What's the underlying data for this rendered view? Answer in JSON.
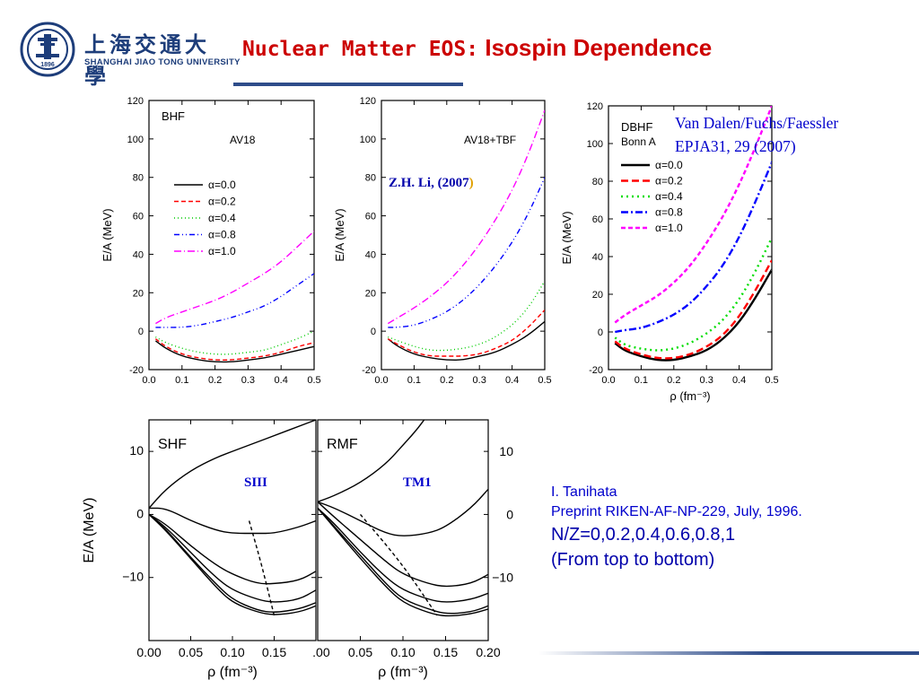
{
  "header": {
    "university_cn": "上海交通大學",
    "university_en": "SHANGHAI  JIAO TONG  UNIVERSITY",
    "seal_year": "1896",
    "title_part1": "Nuclear Matter EOS:",
    "title_part2": "Isospin Dependence"
  },
  "annotations": {
    "bhf_tbf_credit_main": "Z.H. Li, (2007",
    "bhf_tbf_credit_paren": ")",
    "dbhf_credit_line1": "Van Dalen/Fuchs/Faessler",
    "dbhf_credit_line2": "EPJA31, 29 (2007)",
    "shf_param": "SIII",
    "rmf_param": "TM1",
    "tanihata_line1": "I. Tanihata",
    "tanihata_line2": "Preprint RIKEN-AF-NP-229, July, 1996.",
    "tanihata_line3": "N/Z=0,0.2,0.4,0.6,0.8,1",
    "tanihata_line4": "(From top to bottom)"
  },
  "chart_data": [
    {
      "id": "bhf",
      "type": "line",
      "panel_title": "BHF",
      "subtitle": "AV18",
      "xlabel": "ρ (fm⁻³)",
      "ylabel": "E/A (MeV)",
      "xlim": [
        0.0,
        0.5
      ],
      "ylim": [
        -20,
        120
      ],
      "xticks": [
        "0.0",
        "0.1",
        "0.2",
        "0.3",
        "0.4",
        "0.5"
      ],
      "yticks": [
        "-20",
        "0",
        "20",
        "40",
        "60",
        "80",
        "100",
        "120"
      ],
      "legend_position": "middle-left",
      "series": [
        {
          "name": "α=0.0",
          "color": "#000000",
          "dash": "",
          "x": [
            0.02,
            0.05,
            0.1,
            0.15,
            0.2,
            0.25,
            0.3,
            0.35,
            0.4,
            0.45,
            0.5
          ],
          "y": [
            -5,
            -9,
            -13,
            -15,
            -16,
            -16,
            -15,
            -14,
            -12,
            -10,
            -8
          ]
        },
        {
          "name": "α=0.2",
          "color": "#ff0000",
          "dash": "5,3",
          "x": [
            0.02,
            0.05,
            0.1,
            0.15,
            0.2,
            0.25,
            0.3,
            0.35,
            0.4,
            0.45,
            0.5
          ],
          "y": [
            -4,
            -8,
            -12,
            -14,
            -15,
            -15,
            -14,
            -13,
            -11,
            -8,
            -6
          ]
        },
        {
          "name": "α=0.4",
          "color": "#00cc00",
          "dash": "1,3",
          "x": [
            0.02,
            0.05,
            0.1,
            0.15,
            0.2,
            0.25,
            0.3,
            0.35,
            0.4,
            0.45,
            0.5
          ],
          "y": [
            -3,
            -6,
            -9,
            -11,
            -12,
            -12,
            -11,
            -10,
            -7,
            -4,
            0
          ]
        },
        {
          "name": "α=0.8",
          "color": "#0000ff",
          "dash": "6,3,1,3,1,3",
          "x": [
            0.02,
            0.05,
            0.1,
            0.15,
            0.2,
            0.25,
            0.3,
            0.35,
            0.4,
            0.45,
            0.5
          ],
          "y": [
            2,
            2,
            2,
            3,
            5,
            7,
            10,
            13,
            18,
            24,
            30
          ]
        },
        {
          "name": "α=1.0",
          "color": "#ff00ff",
          "dash": "8,3,1,3",
          "x": [
            0.02,
            0.05,
            0.1,
            0.15,
            0.2,
            0.25,
            0.3,
            0.35,
            0.4,
            0.45,
            0.5
          ],
          "y": [
            4,
            7,
            10,
            13,
            16,
            20,
            25,
            30,
            36,
            44,
            52
          ]
        }
      ]
    },
    {
      "id": "bhf_tbf",
      "type": "line",
      "panel_title": "",
      "subtitle": "AV18+TBF",
      "xlabel": "ρ (fm⁻³)",
      "ylabel": "E/A (MeV)",
      "xlim": [
        0.0,
        0.5
      ],
      "ylim": [
        -20,
        120
      ],
      "xticks": [
        "0.0",
        "0.1",
        "0.2",
        "0.3",
        "0.4",
        "0.5"
      ],
      "yticks": [
        "-20",
        "0",
        "20",
        "40",
        "60",
        "80",
        "100",
        "120"
      ],
      "series": [
        {
          "name": "α=0.0",
          "color": "#000000",
          "dash": "",
          "x": [
            0.02,
            0.05,
            0.1,
            0.15,
            0.2,
            0.25,
            0.3,
            0.35,
            0.4,
            0.45,
            0.5
          ],
          "y": [
            -4,
            -8,
            -12,
            -14,
            -15,
            -15,
            -13,
            -11,
            -7,
            -2,
            5
          ]
        },
        {
          "name": "α=0.2",
          "color": "#ff0000",
          "dash": "5,3",
          "x": [
            0.02,
            0.05,
            0.1,
            0.15,
            0.2,
            0.25,
            0.3,
            0.35,
            0.4,
            0.45,
            0.5
          ],
          "y": [
            -4,
            -7,
            -11,
            -13,
            -13,
            -13,
            -12,
            -9,
            -5,
            2,
            11
          ]
        },
        {
          "name": "α=0.4",
          "color": "#00cc00",
          "dash": "1,3",
          "x": [
            0.02,
            0.05,
            0.1,
            0.15,
            0.2,
            0.25,
            0.3,
            0.35,
            0.4,
            0.45,
            0.5
          ],
          "y": [
            -3,
            -5,
            -8,
            -10,
            -10,
            -9,
            -7,
            -3,
            3,
            12,
            26
          ]
        },
        {
          "name": "α=0.8",
          "color": "#0000ff",
          "dash": "6,3,1,3,1,3",
          "x": [
            0.02,
            0.05,
            0.1,
            0.15,
            0.2,
            0.25,
            0.3,
            0.35,
            0.4,
            0.45,
            0.5
          ],
          "y": [
            2,
            2,
            3,
            6,
            10,
            16,
            24,
            34,
            46,
            61,
            80
          ]
        },
        {
          "name": "α=1.0",
          "color": "#ff00ff",
          "dash": "8,3,1,3",
          "x": [
            0.02,
            0.05,
            0.1,
            0.15,
            0.2,
            0.25,
            0.3,
            0.35,
            0.4,
            0.45,
            0.5
          ],
          "y": [
            4,
            7,
            12,
            18,
            25,
            34,
            45,
            58,
            73,
            92,
            115
          ]
        }
      ]
    },
    {
      "id": "dbhf",
      "type": "line",
      "panel_title": "DBHF",
      "subtitle": "Bonn A",
      "xlabel": "ρ (fm⁻³)",
      "ylabel": "E/A (MeV)",
      "xlim": [
        0.0,
        0.5
      ],
      "ylim": [
        -20,
        120
      ],
      "xticks": [
        "0.0",
        "0.1",
        "0.2",
        "0.3",
        "0.4",
        "0.5"
      ],
      "yticks": [
        "-20",
        "0",
        "20",
        "40",
        "60",
        "80",
        "100",
        "120"
      ],
      "legend_position": "middle-left",
      "series": [
        {
          "name": "α=0.0",
          "color": "#000000",
          "dash": "",
          "x": [
            0.02,
            0.05,
            0.1,
            0.15,
            0.2,
            0.25,
            0.3,
            0.35,
            0.4,
            0.45,
            0.5
          ],
          "y": [
            -6,
            -10,
            -13,
            -15,
            -15,
            -13,
            -10,
            -4,
            5,
            18,
            33
          ]
        },
        {
          "name": "α=0.2",
          "color": "#ff0000",
          "dash": "8,4",
          "x": [
            0.02,
            0.05,
            0.1,
            0.15,
            0.2,
            0.25,
            0.3,
            0.35,
            0.4,
            0.45,
            0.5
          ],
          "y": [
            -5,
            -9,
            -12,
            -14,
            -14,
            -12,
            -8,
            -2,
            8,
            22,
            38
          ]
        },
        {
          "name": "α=0.4",
          "color": "#00dd00",
          "dash": "2,4",
          "x": [
            0.02,
            0.05,
            0.1,
            0.15,
            0.2,
            0.25,
            0.3,
            0.35,
            0.4,
            0.45,
            0.5
          ],
          "y": [
            -3,
            -7,
            -9,
            -10,
            -9,
            -6,
            -1,
            6,
            17,
            32,
            50
          ]
        },
        {
          "name": "α=0.8",
          "color": "#0000ff",
          "dash": "8,3,2,3",
          "x": [
            0.02,
            0.05,
            0.1,
            0.15,
            0.2,
            0.25,
            0.3,
            0.35,
            0.4,
            0.45,
            0.5
          ],
          "y": [
            0,
            1,
            2,
            5,
            9,
            15,
            24,
            35,
            50,
            69,
            90
          ]
        },
        {
          "name": "α=1.0",
          "color": "#ff00ff",
          "dash": "5,3",
          "x": [
            0.02,
            0.05,
            0.1,
            0.15,
            0.2,
            0.25,
            0.3,
            0.35,
            0.4,
            0.45,
            0.5
          ],
          "y": [
            5,
            9,
            14,
            19,
            26,
            35,
            47,
            61,
            78,
            98,
            120
          ]
        }
      ]
    },
    {
      "id": "shf",
      "type": "line",
      "panel_title": "SHF",
      "xlabel": "ρ (fm⁻³)",
      "ylabel": "E/A (MeV)",
      "xlim": [
        0.0,
        0.2
      ],
      "ylim": [
        -20,
        15
      ],
      "xticks": [
        "0.00",
        "0.05",
        "0.10",
        "0.15"
      ],
      "yticks": [
        "−10",
        "0",
        "10"
      ],
      "series": [
        {
          "name": "N/Z=0",
          "color": "#000000",
          "x": [
            0.0,
            0.02,
            0.05,
            0.08,
            0.1,
            0.13,
            0.15,
            0.18,
            0.2
          ],
          "y": [
            1,
            4,
            7,
            9,
            10,
            11.5,
            12.5,
            14,
            15
          ]
        },
        {
          "name": "N/Z=0.2",
          "color": "#000000",
          "x": [
            0.0,
            0.02,
            0.05,
            0.08,
            0.1,
            0.13,
            0.15,
            0.18,
            0.2
          ],
          "y": [
            1,
            1,
            -1,
            -2.5,
            -3,
            -3,
            -3,
            -2,
            -1
          ]
        },
        {
          "name": "N/Z=0.4",
          "color": "#000000",
          "x": [
            0.0,
            0.02,
            0.05,
            0.08,
            0.1,
            0.13,
            0.15,
            0.18,
            0.2
          ],
          "y": [
            0,
            -1.5,
            -5,
            -8,
            -9.5,
            -11,
            -11,
            -10.5,
            -9
          ]
        },
        {
          "name": "N/Z=0.6",
          "color": "#000000",
          "x": [
            0.0,
            0.02,
            0.05,
            0.08,
            0.1,
            0.13,
            0.15,
            0.18,
            0.2
          ],
          "y": [
            0,
            -2,
            -6,
            -10,
            -12,
            -13.5,
            -14,
            -13.5,
            -12
          ]
        },
        {
          "name": "N/Z=0.8",
          "color": "#000000",
          "x": [
            0.0,
            0.02,
            0.05,
            0.08,
            0.1,
            0.13,
            0.15,
            0.18,
            0.2
          ],
          "y": [
            0,
            -2.3,
            -6.8,
            -11,
            -13.5,
            -15.2,
            -15.6,
            -15,
            -14
          ]
        },
        {
          "name": "N/Z=1",
          "color": "#000000",
          "x": [
            0.0,
            0.02,
            0.05,
            0.08,
            0.1,
            0.13,
            0.15,
            0.18,
            0.2
          ],
          "y": [
            0,
            -2.5,
            -7,
            -11.5,
            -14,
            -15.5,
            -16,
            -15.5,
            -14.5
          ]
        },
        {
          "name": "saturation",
          "color": "#000000",
          "dash": "4,3",
          "x": [
            0.12,
            0.135,
            0.15
          ],
          "y": [
            -1,
            -8,
            -16
          ]
        }
      ]
    },
    {
      "id": "rmf",
      "type": "line",
      "panel_title": "RMF",
      "xlabel": "ρ (fm⁻³)",
      "xlim": [
        0.0,
        0.2
      ],
      "ylim": [
        -20,
        15
      ],
      "xticks": [
        "0.00",
        "0.05",
        "0.10",
        "0.15",
        "0.20"
      ],
      "yticks": [
        "−10",
        "0",
        "10"
      ],
      "series": [
        {
          "name": "N/Z=0",
          "color": "#000000",
          "x": [
            0.0,
            0.02,
            0.05,
            0.08,
            0.1,
            0.12,
            0.14
          ],
          "y": [
            2,
            3,
            5,
            8,
            11,
            14,
            18
          ]
        },
        {
          "name": "N/Z=0.2",
          "color": "#000000",
          "x": [
            0.0,
            0.02,
            0.05,
            0.08,
            0.1,
            0.13,
            0.15,
            0.18,
            0.2
          ],
          "y": [
            2,
            1,
            -1,
            -3,
            -3.5,
            -3,
            -2,
            1,
            4
          ]
        },
        {
          "name": "N/Z=0.4",
          "color": "#000000",
          "x": [
            0.0,
            0.02,
            0.05,
            0.08,
            0.1,
            0.13,
            0.15,
            0.18,
            0.2
          ],
          "y": [
            2,
            -0.5,
            -4,
            -7.5,
            -9.5,
            -11,
            -11.5,
            -11,
            -9.5
          ]
        },
        {
          "name": "N/Z=0.6",
          "color": "#000000",
          "x": [
            0.0,
            0.02,
            0.05,
            0.08,
            0.1,
            0.13,
            0.15,
            0.18,
            0.2
          ],
          "y": [
            1,
            -1.5,
            -6,
            -10,
            -12,
            -13.5,
            -14,
            -13.5,
            -12.5
          ]
        },
        {
          "name": "N/Z=0.8",
          "color": "#000000",
          "x": [
            0.0,
            0.02,
            0.05,
            0.08,
            0.1,
            0.13,
            0.15,
            0.18,
            0.2
          ],
          "y": [
            1,
            -2,
            -6.5,
            -11,
            -13.5,
            -15,
            -15.8,
            -15.5,
            -14.5
          ]
        },
        {
          "name": "N/Z=1",
          "color": "#000000",
          "x": [
            0.0,
            0.02,
            0.05,
            0.08,
            0.1,
            0.13,
            0.15,
            0.18,
            0.2
          ],
          "y": [
            1,
            -2.2,
            -7,
            -11.5,
            -14,
            -15.6,
            -16.2,
            -15.8,
            -15
          ]
        },
        {
          "name": "saturation",
          "color": "#000000",
          "dash": "4,3",
          "x": [
            0.05,
            0.1,
            0.14
          ],
          "y": [
            0,
            -8,
            -16
          ]
        }
      ]
    }
  ]
}
